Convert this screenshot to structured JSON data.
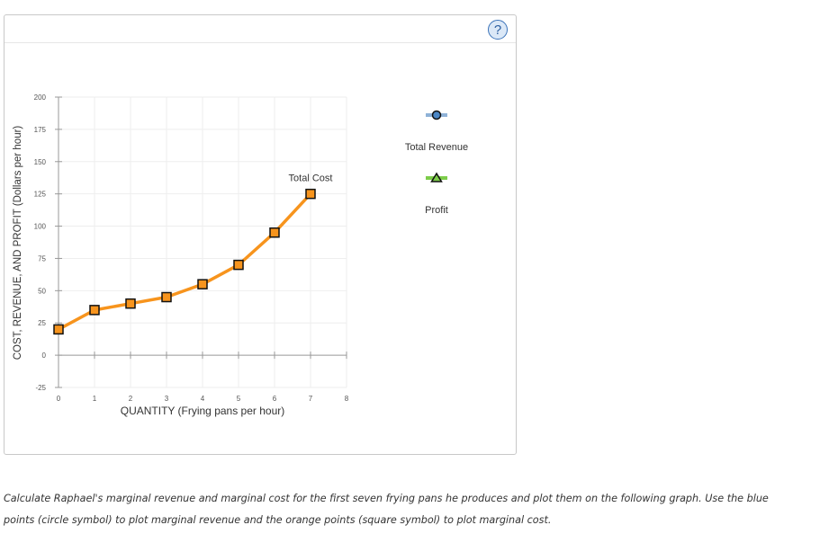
{
  "help_label": "?",
  "legend": {
    "items": [
      {
        "label": "Total Revenue",
        "marker": "circle",
        "line_color": "#8fb2d7",
        "marker_fill": "#4a86c5"
      },
      {
        "label": "Profit",
        "marker": "triangle",
        "line_color": "#7dcc4a",
        "marker_fill": "#7dcc4a"
      }
    ]
  },
  "instructions": {
    "line1": "Calculate Raphael's marginal revenue and marginal cost for the first seven frying pans he produces and plot them on the following graph. Use the blue",
    "line2": "points (circle symbol) to plot marginal revenue and the orange points (square symbol) to plot marginal cost."
  },
  "chart_data": {
    "type": "line",
    "xlabel": "QUANTITY (Frying pans per hour)",
    "ylabel": "COST, REVENUE, AND PROFIT (Dollars per hour)",
    "xlim": [
      0,
      8
    ],
    "ylim": [
      -25,
      200
    ],
    "x_ticks": [
      0,
      1,
      2,
      3,
      4,
      5,
      6,
      7,
      8
    ],
    "y_ticks": [
      -25,
      0,
      25,
      50,
      75,
      100,
      125,
      150,
      175,
      200
    ],
    "grid": true,
    "series": [
      {
        "name": "Total Cost",
        "color": "#f7941d",
        "marker": "square",
        "x": [
          0,
          1,
          2,
          3,
          4,
          5,
          6,
          7
        ],
        "y": [
          20,
          35,
          40,
          45,
          55,
          70,
          95,
          125
        ]
      }
    ]
  }
}
